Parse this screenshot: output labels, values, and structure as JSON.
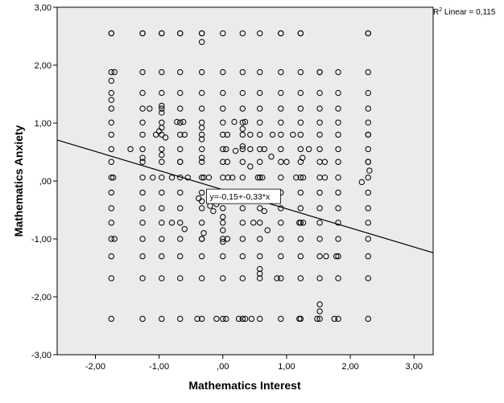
{
  "chart_data": {
    "type": "scatter",
    "xlabel": "Mathematics Interest",
    "ylabel": "Mathematics Anxiety",
    "xlim": [
      -2.6,
      3.3
    ],
    "ylim": [
      -3.0,
      3.0
    ],
    "x_ticks": [
      -2,
      -1,
      0,
      1,
      2,
      3
    ],
    "x_tick_labels": [
      "-2,00",
      "-1,00",
      ",00",
      "1,00",
      "2,00",
      "3,00"
    ],
    "y_ticks": [
      -3,
      -2,
      -1,
      0,
      1,
      2,
      3
    ],
    "y_tick_labels": [
      "-3,00",
      "-2,00",
      "-1,00",
      ",00",
      "1,00",
      "2,00",
      "3,00"
    ],
    "r2_label": {
      "prefix": "R",
      "sup": "2",
      "text": " Linear = 0,115"
    },
    "fit_line": {
      "intercept": -0.15,
      "slope": -0.33,
      "equation_label": "y=-0,15+-0,33*x",
      "label_x": 0.35
    },
    "plot_background": "#ebebeb",
    "marker_color": "#000000",
    "grid": false,
    "columns_x": [
      -1.75,
      -1.26,
      -0.96,
      -0.67,
      -0.33,
      0.0,
      0.31,
      0.58,
      0.91,
      1.22,
      1.52,
      1.81,
      2.28
    ],
    "levels_y": [
      -2.38,
      -1.68,
      -1.3,
      -1.0,
      -0.72,
      -0.47,
      -0.2,
      0.06,
      0.33,
      0.55,
      0.8,
      1.01,
      1.25,
      1.52,
      1.88,
      2.55
    ],
    "grid_points_absent": [
      [
        1.81,
        2.55
      ],
      [
        1.52,
        2.55
      ],
      [
        0.0,
        2.55
      ]
    ],
    "extra_points": [
      [
        -1.75,
        2.55
      ],
      [
        -1.26,
        2.55
      ],
      [
        -0.96,
        2.55
      ],
      [
        -0.67,
        2.55
      ],
      [
        -0.33,
        2.55
      ],
      [
        -0.33,
        2.4
      ],
      [
        0.0,
        2.55
      ],
      [
        0.91,
        2.55
      ],
      [
        1.22,
        2.55
      ],
      [
        2.28,
        2.55
      ],
      [
        1.52,
        1.88
      ],
      [
        -1.7,
        1.88
      ],
      [
        -1.75,
        1.73
      ],
      [
        -1.75,
        1.4
      ],
      [
        -0.96,
        1.3
      ],
      [
        -0.96,
        1.18
      ],
      [
        -1.15,
        1.25
      ],
      [
        -0.72,
        1.02
      ],
      [
        -0.62,
        1.02
      ],
      [
        -0.6,
        0.8
      ],
      [
        -0.33,
        0.92
      ],
      [
        -0.33,
        0.72
      ],
      [
        -0.96,
        0.92
      ],
      [
        -1.0,
        0.86
      ],
      [
        -0.9,
        0.75
      ],
      [
        -1.05,
        0.8
      ],
      [
        0.07,
        0.8
      ],
      [
        0.18,
        1.02
      ],
      [
        0.35,
        1.02
      ],
      [
        0.31,
        0.9
      ],
      [
        0.43,
        0.8
      ],
      [
        0.78,
        0.8
      ],
      [
        1.1,
        0.8
      ],
      [
        2.28,
        0.8
      ],
      [
        2.28,
        0.33
      ],
      [
        2.3,
        0.18
      ],
      [
        -1.45,
        0.55
      ],
      [
        -0.96,
        0.45
      ],
      [
        -1.26,
        0.4
      ],
      [
        -0.67,
        0.33
      ],
      [
        -0.33,
        0.4
      ],
      [
        0.05,
        0.55
      ],
      [
        0.2,
        0.52
      ],
      [
        0.31,
        0.6
      ],
      [
        0.43,
        0.55
      ],
      [
        0.65,
        0.55
      ],
      [
        0.76,
        0.42
      ],
      [
        1.0,
        0.33
      ],
      [
        1.25,
        0.4
      ],
      [
        1.35,
        0.55
      ],
      [
        1.6,
        0.33
      ],
      [
        -1.72,
        0.06
      ],
      [
        -1.1,
        0.06
      ],
      [
        -0.8,
        0.06
      ],
      [
        -0.55,
        0.06
      ],
      [
        -0.3,
        0.06
      ],
      [
        -0.22,
        0.06
      ],
      [
        0.08,
        0.06
      ],
      [
        0.15,
        0.06
      ],
      [
        0.55,
        0.06
      ],
      [
        0.62,
        0.06
      ],
      [
        1.15,
        0.06
      ],
      [
        1.26,
        0.06
      ],
      [
        1.6,
        0.06
      ],
      [
        2.18,
        -0.02
      ],
      [
        0.43,
        0.25
      ],
      [
        0.07,
        0.33
      ],
      [
        -0.33,
        -0.35
      ],
      [
        -0.2,
        -0.43
      ],
      [
        -0.15,
        -0.52
      ],
      [
        -0.1,
        -0.4
      ],
      [
        -1.7,
        -1.0
      ],
      [
        -0.8,
        -0.72
      ],
      [
        -0.6,
        -0.83
      ],
      [
        -0.33,
        -1.0
      ],
      [
        -0.3,
        -0.9
      ],
      [
        0.0,
        -0.85
      ],
      [
        0.0,
        -0.62
      ],
      [
        0.07,
        -1.0
      ],
      [
        0.48,
        -0.72
      ],
      [
        0.65,
        -0.52
      ],
      [
        0.7,
        -0.85
      ],
      [
        1.2,
        -0.72
      ],
      [
        1.26,
        -0.72
      ],
      [
        1.62,
        -1.3
      ],
      [
        1.78,
        -1.3
      ],
      [
        0.58,
        -1.52
      ],
      [
        0.58,
        -1.6
      ],
      [
        0.85,
        -1.68
      ],
      [
        1.52,
        -2.13
      ],
      [
        1.52,
        -2.25
      ],
      [
        1.48,
        -2.38
      ],
      [
        1.75,
        -2.38
      ],
      [
        1.2,
        -2.38
      ],
      [
        0.25,
        -2.38
      ],
      [
        0.35,
        -2.38
      ],
      [
        -0.1,
        -2.38
      ],
      [
        -0.4,
        -2.38
      ],
      [
        0.05,
        -2.38
      ],
      [
        0.45,
        -2.38
      ],
      [
        0.0,
        -1.05
      ],
      [
        -0.38,
        -0.3
      ]
    ]
  }
}
